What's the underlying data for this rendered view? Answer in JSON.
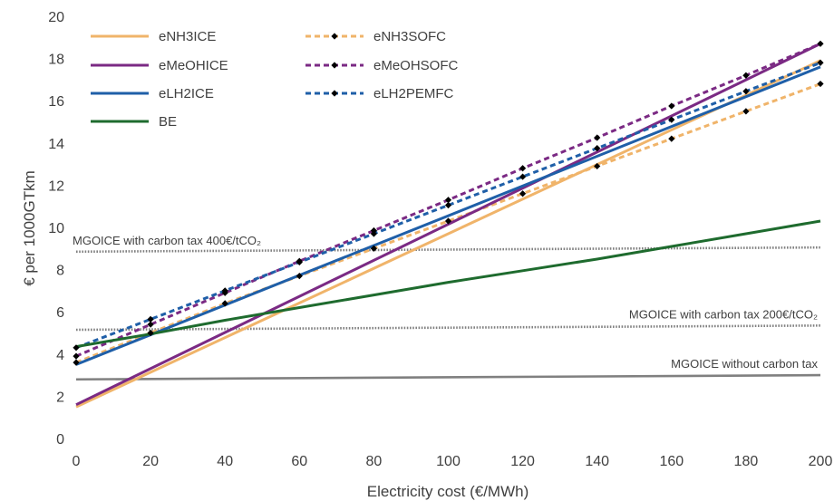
{
  "chart_data": {
    "type": "line",
    "xlabel": "Electricity cost (€/MWh)",
    "ylabel": "€ per 1000GTkm",
    "xlim": [
      0,
      200
    ],
    "ylim": [
      0,
      20
    ],
    "xticks": [
      0,
      20,
      40,
      60,
      80,
      100,
      120,
      140,
      160,
      180,
      200
    ],
    "yticks": [
      0,
      2,
      4,
      6,
      8,
      10,
      12,
      14,
      16,
      18,
      20
    ],
    "grid": false,
    "legend_position": "top-left",
    "series": [
      {
        "name": "eNH3ICE",
        "color": "#F0B46A",
        "dash": "solid",
        "markers": false,
        "x": [
          0,
          200
        ],
        "y": [
          1.5,
          17.9
        ]
      },
      {
        "name": "eNH3SOFC",
        "color": "#F0B46A",
        "dash": "dashed",
        "markers": true,
        "x": [
          0,
          20,
          40,
          60,
          80,
          100,
          120,
          140,
          160,
          180,
          200
        ],
        "y": [
          3.6,
          5.0,
          6.4,
          7.7,
          9.0,
          10.3,
          11.6,
          12.9,
          14.2,
          15.5,
          16.8
        ]
      },
      {
        "name": "eMeOHICE",
        "color": "#7B2A84",
        "dash": "solid",
        "markers": false,
        "x": [
          0,
          200
        ],
        "y": [
          1.6,
          18.7
        ]
      },
      {
        "name": "eMeOHSOFC",
        "color": "#7B2A84",
        "dash": "dashed",
        "markers": true,
        "x": [
          0,
          20,
          40,
          60,
          80,
          100,
          120,
          140,
          160,
          180,
          200
        ],
        "y": [
          3.9,
          5.4,
          6.9,
          8.4,
          9.85,
          11.3,
          12.8,
          14.25,
          15.75,
          17.2,
          18.7
        ]
      },
      {
        "name": "eLH2ICE",
        "color": "#1F5FA8",
        "dash": "solid",
        "markers": false,
        "x": [
          0,
          200
        ],
        "y": [
          3.5,
          17.6
        ]
      },
      {
        "name": "eLH2PEMFC",
        "color": "#1F5FA8",
        "dash": "dashed",
        "markers": true,
        "x": [
          0,
          20,
          40,
          60,
          80,
          100,
          120,
          140,
          160,
          180,
          200
        ],
        "y": [
          4.3,
          5.65,
          7.0,
          8.35,
          9.7,
          11.05,
          12.4,
          13.75,
          15.1,
          16.45,
          17.8
        ]
      },
      {
        "name": "BE",
        "color": "#1E6B2E",
        "dash": "solid",
        "markers": false,
        "x": [
          0,
          20,
          40,
          60,
          80,
          100,
          120,
          140,
          160,
          180,
          200
        ],
        "y": [
          4.35,
          4.95,
          5.6,
          6.2,
          6.8,
          7.4,
          7.95,
          8.5,
          9.1,
          9.7,
          10.3
        ]
      }
    ],
    "reference_lines": [
      {
        "label": "MGOICE with carbon tax 400€/tCO₂",
        "y_start": 8.85,
        "y_end": 9.05,
        "color": "#808080",
        "style": "dotted",
        "label_position": "left"
      },
      {
        "label": "MGOICE with carbon tax 200€/tCO₂",
        "y_start": 5.15,
        "y_end": 5.35,
        "color": "#808080",
        "style": "dotted",
        "label_position": "right"
      },
      {
        "label": "MGOICE without carbon tax",
        "y_start": 2.8,
        "y_end": 3.0,
        "color": "#808080",
        "style": "solid",
        "label_position": "right"
      }
    ]
  }
}
